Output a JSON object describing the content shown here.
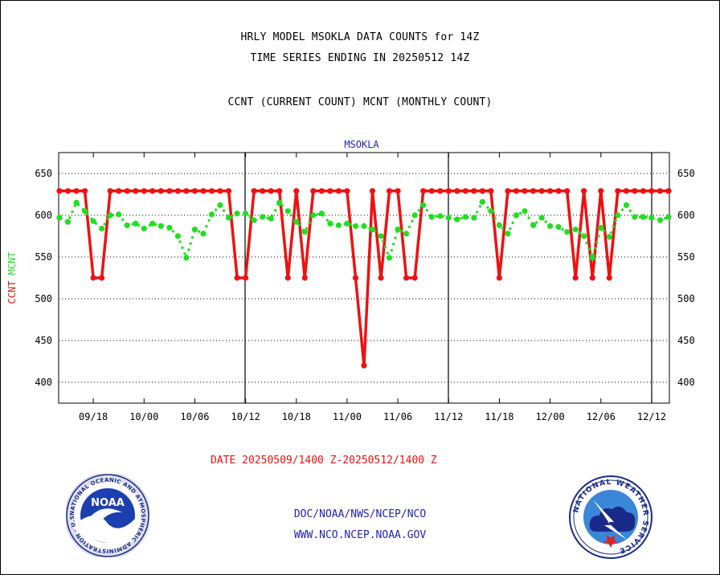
{
  "header": {
    "title_line1": "HRLY MODEL MSOKLA DATA COUNTS for 14Z",
    "title_line2": "TIME SERIES ENDING IN 20250512 14Z",
    "title_line3": "CCNT (CURRENT COUNT) MCNT (MONTHLY COUNT)"
  },
  "footer": {
    "date_range": "DATE 20250509/1400 Z-20250512/1400 Z",
    "org_line": "DOC/NOAA/NWS/NCEP/NCO",
    "url_line": "WWW.NCO.NCEP.NOAA.GOV",
    "noaa_logo_text": "NOAA",
    "nws_logo_text": "NATIONAL WEATHER SERVICE"
  },
  "colors": {
    "ccnt": "#ee1111",
    "mcnt": "#22dd22",
    "plot_title": "#2222bb"
  },
  "chart_data": {
    "type": "line",
    "title": "MSOKLA",
    "ylabel_parts": [
      {
        "text": "CCNT",
        "color": "#ee1111"
      },
      {
        "text": "MCNT",
        "color": "#22dd22"
      }
    ],
    "ylim": [
      375,
      675
    ],
    "yticks": [
      400,
      450,
      500,
      550,
      600,
      650
    ],
    "xticks": [
      "09/18",
      "10/00",
      "10/06",
      "10/12",
      "10/18",
      "11/00",
      "11/06",
      "11/12",
      "11/18",
      "12/00",
      "12/06",
      "12/12"
    ],
    "xtick_index": [
      4,
      10,
      16,
      22,
      28,
      34,
      40,
      46,
      52,
      58,
      64,
      70
    ],
    "day_boundaries_index": [
      22.5,
      46.5,
      70
    ],
    "x_count": 73,
    "grid": "horizontal-dotted",
    "legend": "none",
    "series": [
      {
        "name": "CCNT",
        "color": "#ee1111",
        "values": [
          629,
          629,
          629,
          629,
          525,
          525,
          629,
          629,
          629,
          629,
          629,
          629,
          629,
          629,
          629,
          629,
          629,
          629,
          629,
          629,
          629,
          525,
          525,
          629,
          629,
          629,
          629,
          525,
          629,
          525,
          629,
          629,
          629,
          629,
          629,
          525,
          420,
          629,
          525,
          629,
          629,
          525,
          525,
          629,
          629,
          629,
          629,
          629,
          629,
          629,
          629,
          629,
          525,
          629,
          629,
          629,
          629,
          629,
          629,
          629,
          629,
          525,
          629,
          525,
          629,
          525,
          629,
          629,
          629,
          629,
          629,
          629,
          629
        ]
      },
      {
        "name": "MCNT",
        "color": "#22dd22",
        "values": [
          597,
          592,
          615,
          605,
          593,
          584,
          600,
          601,
          588,
          590,
          584,
          590,
          587,
          585,
          575,
          549,
          583,
          578,
          601,
          612,
          597,
          602,
          602,
          594,
          598,
          596,
          615,
          605,
          592,
          580,
          600,
          602,
          590,
          588,
          590,
          587,
          587,
          583,
          575,
          549,
          583,
          578,
          600,
          612,
          598,
          599,
          597,
          595,
          598,
          597,
          616,
          605,
          588,
          578,
          600,
          605,
          588,
          597,
          587,
          586,
          580,
          583,
          575,
          549,
          585,
          574,
          600,
          612,
          598,
          598,
          597,
          594,
          598
        ]
      }
    ]
  }
}
